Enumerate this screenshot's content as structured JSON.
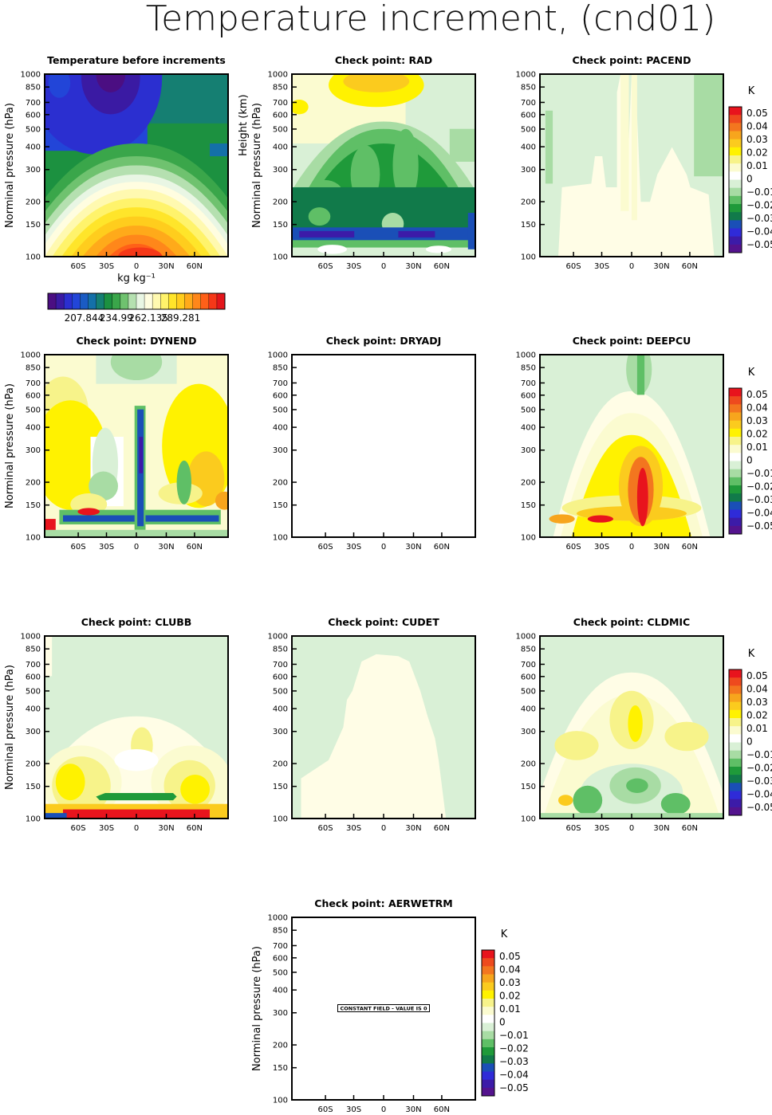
{
  "figure": {
    "title": "Temperature increment, (cnd01)"
  },
  "chart_data": {
    "type": "heatmap",
    "x_ticks": [
      "60S",
      "30S",
      "0",
      "30N",
      "60N"
    ],
    "y_ticks": [
      "100",
      "150",
      "200",
      "300",
      "400",
      "500",
      "600",
      "700",
      "850",
      "1000"
    ],
    "y_label": "Norminal pressure (hPa)",
    "y_label_extra": "Height (km)",
    "panels": [
      {
        "id": "tbefore",
        "title": "Temperature before increments",
        "pattern": "tbase",
        "xlabel": "kg kg⁻¹",
        "ylabel": true
      },
      {
        "id": "rad",
        "title": "Check point: RAD",
        "pattern": "rad",
        "ylabel": true,
        "ylabel_extra": true
      },
      {
        "id": "pacend",
        "title": "Check point: PACEND",
        "pattern": "pacend",
        "ylabel": false
      },
      {
        "id": "dynend",
        "title": "Check point: DYNEND",
        "pattern": "dynend",
        "ylabel": true
      },
      {
        "id": "dryadj",
        "title": "Check point: DRYADJ",
        "pattern": "blank",
        "ylabel": false
      },
      {
        "id": "deepcu",
        "title": "Check point: DEEPCU",
        "pattern": "deepcu",
        "ylabel": false
      },
      {
        "id": "clubb",
        "title": "Check point: CLUBB",
        "pattern": "clubb",
        "ylabel": true
      },
      {
        "id": "cudet",
        "title": "Check point: CUDET",
        "pattern": "cudet",
        "ylabel": false
      },
      {
        "id": "cldmic",
        "title": "Check point: CLDMIC",
        "pattern": "cldmic",
        "ylabel": false
      },
      {
        "id": "aerwetrm",
        "title": "Check point: AERWETRM",
        "pattern": "blank",
        "ylabel": true,
        "note": "CONSTANT FIELD - VALUE IS 0"
      }
    ],
    "increment_colorbar": {
      "unit": "K",
      "labels": [
        "0.05",
        "0.04",
        "0.03",
        "0.02",
        "0.01",
        "0",
        "−0.01",
        "−0.02",
        "−0.03",
        "−0.04",
        "−0.05"
      ],
      "colors": [
        "#e8141d",
        "#ee4a1e",
        "#f3761f",
        "#f7a51d",
        "#fbcb1e",
        "#fff200",
        "#f7f38a",
        "#fbfbd0",
        "#ffffff",
        "#d9f0d6",
        "#a8dca4",
        "#5fbf66",
        "#1f9a3a",
        "#117a4a",
        "#1a4fb7",
        "#2f2bd8",
        "#3c1ba8",
        "#54138e"
      ]
    },
    "temperature_colorbar": {
      "labels": [
        "207.844",
        "234.99",
        "262.135",
        "289.281"
      ],
      "colors": [
        "#4b0e82",
        "#3a1aa3",
        "#2b2fd0",
        "#2245d8",
        "#1a5bc3",
        "#1470a8",
        "#157f72",
        "#1c9140",
        "#3aa64a",
        "#6fc26f",
        "#b5e0b0",
        "#e9f6e4",
        "#fffde0",
        "#fff9b0",
        "#fff36b",
        "#ffe52a",
        "#ffcd1d",
        "#ffaa1a",
        "#ff871a",
        "#ff6018",
        "#f53818",
        "#e3161b"
      ]
    }
  }
}
